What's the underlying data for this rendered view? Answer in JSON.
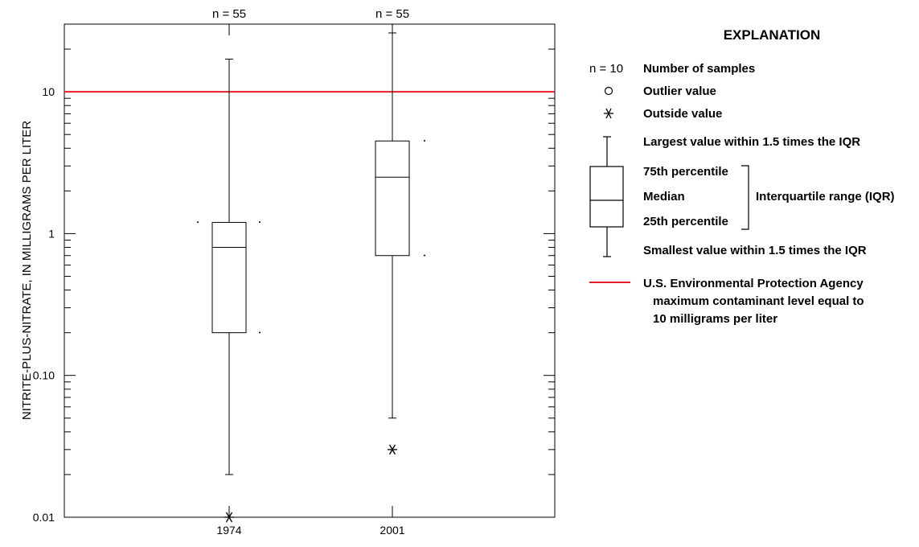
{
  "chart_data": {
    "type": "box",
    "ylabel": "NITRITE-PLUS-NITRATE, IN MILLIGRAMS PER LITER",
    "y_scale": "log",
    "ylim": [
      0.01,
      30
    ],
    "y_ticks": [
      {
        "value": 0.01,
        "label": "0.01"
      },
      {
        "value": 0.1,
        "label": "0.10"
      },
      {
        "value": 1,
        "label": "1"
      },
      {
        "value": 10,
        "label": "10"
      }
    ],
    "reference_line": {
      "value": 10,
      "color": "#e41e26"
    },
    "categories": [
      "1974",
      "2001"
    ],
    "boxes": [
      {
        "category": "1974",
        "n_label": "n = 55",
        "whisker_low": 0.02,
        "q1": 0.2,
        "median": 0.8,
        "q3": 1.2,
        "whisker_high": 17,
        "outside_values": [
          0.01
        ],
        "outlier_values": [],
        "dots": [
          1.2,
          1.2,
          0.2
        ]
      },
      {
        "category": "2001",
        "n_label": "n = 55",
        "whisker_low": 0.05,
        "q1": 0.7,
        "median": 2.5,
        "q3": 4.5,
        "whisker_high": 26,
        "outside_values": [
          0.03
        ],
        "outlier_values": [],
        "dots": [
          4.5,
          0.7
        ]
      }
    ]
  },
  "legend": {
    "title": "EXPLANATION",
    "n_example": "n = 10",
    "n_desc": "Number of samples",
    "outlier": "Outlier value",
    "outside": "Outside value",
    "largest": "Largest value within 1.5 times the IQR",
    "p75": "75th percentile",
    "median": "Median",
    "iqr": "Interquartile range (IQR)",
    "p25": "25th percentile",
    "smallest": "Smallest value within 1.5 times the IQR",
    "mcl_line1": "U.S. Environmental Protection Agency",
    "mcl_line2": "maximum contaminant level equal to",
    "mcl_line3": "10 milligrams per liter",
    "mcl_color": "#e41e26"
  }
}
